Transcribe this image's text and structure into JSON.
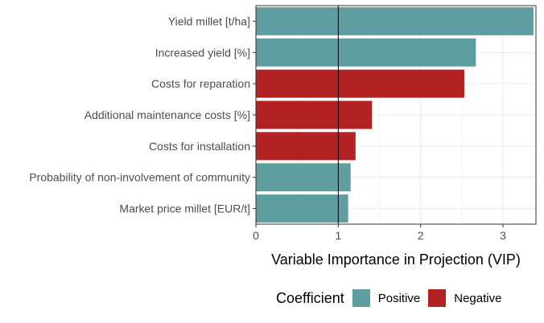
{
  "chart_data": {
    "type": "bar",
    "orientation": "horizontal",
    "categories": [
      "Yield millet  [t/ha]",
      "Increased yield [%]",
      "Costs for reparation",
      "Additional maintenance costs [%]",
      "Costs for installation",
      "Probability of non-involvement of community",
      "Market price millet [EUR/t]"
    ],
    "values": [
      3.37,
      2.67,
      2.53,
      1.41,
      1.21,
      1.15,
      1.12
    ],
    "coefficient": [
      "Positive",
      "Positive",
      "Negative",
      "Negative",
      "Negative",
      "Positive",
      "Positive"
    ],
    "xlabel": "Variable Importance in Projection (VIP)",
    "ylabel": "",
    "xlim": [
      0,
      3.4
    ],
    "xticks": [
      0,
      1,
      2,
      3
    ],
    "xtick_labels": [
      "0",
      "1",
      "2",
      "3"
    ],
    "reference_line": 1,
    "grid": true,
    "legend": {
      "title": "Coefficient",
      "position": "bottom",
      "entries": [
        {
          "name": "Positive",
          "color": "#5f9ea0"
        },
        {
          "name": "Negative",
          "color": "#b22222"
        }
      ]
    }
  },
  "colors": {
    "Positive": "#5f9ea0",
    "Negative": "#b22222",
    "grid": "#ebebeb",
    "border": "#333333"
  }
}
